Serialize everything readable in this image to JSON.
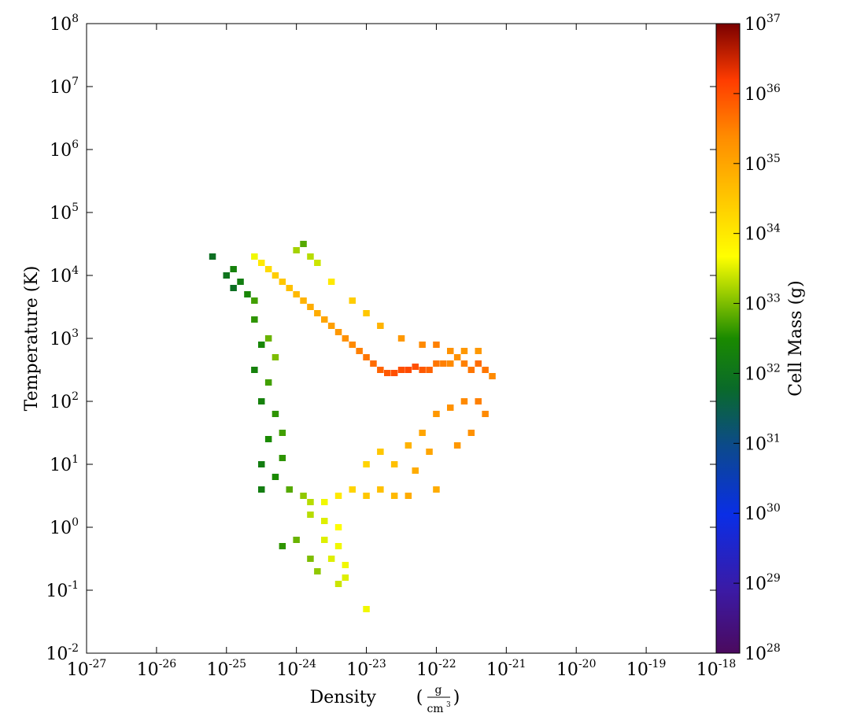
{
  "chart_data": {
    "type": "heatmap",
    "title": "",
    "xlabel": "Density",
    "xlabel_unit_numerator": "g",
    "xlabel_unit_denominator": "cm",
    "xlabel_unit_denominator_exp": "3",
    "ylabel": "Temperature  (K)",
    "colorbar_label": "Cell Mass  (g)",
    "xscale": "log",
    "yscale": "log",
    "colorscale": "log",
    "xlim": [
      1e-27,
      1e-18
    ],
    "ylim": [
      0.01,
      100000000.0
    ],
    "clim": [
      1e+28,
      1e+37
    ],
    "colormap": "jet-like (purple → blue → green → yellow → orange → red)",
    "x_ticks": [
      {
        "base": "10",
        "exp": "-27"
      },
      {
        "base": "10",
        "exp": "-26"
      },
      {
        "base": "10",
        "exp": "-25"
      },
      {
        "base": "10",
        "exp": "-24"
      },
      {
        "base": "10",
        "exp": "-23"
      },
      {
        "base": "10",
        "exp": "-22"
      },
      {
        "base": "10",
        "exp": "-21"
      },
      {
        "base": "10",
        "exp": "-20"
      },
      {
        "base": "10",
        "exp": "-19"
      },
      {
        "base": "10",
        "exp": "-18"
      }
    ],
    "y_ticks": [
      {
        "base": "10",
        "exp": "-2"
      },
      {
        "base": "10",
        "exp": "-1"
      },
      {
        "base": "10",
        "exp": "0"
      },
      {
        "base": "10",
        "exp": "1"
      },
      {
        "base": "10",
        "exp": "2"
      },
      {
        "base": "10",
        "exp": "3"
      },
      {
        "base": "10",
        "exp": "4"
      },
      {
        "base": "10",
        "exp": "5"
      },
      {
        "base": "10",
        "exp": "6"
      },
      {
        "base": "10",
        "exp": "7"
      },
      {
        "base": "10",
        "exp": "8"
      }
    ],
    "colorbar_ticks": [
      {
        "base": "10",
        "exp": "28"
      },
      {
        "base": "10",
        "exp": "29"
      },
      {
        "base": "10",
        "exp": "30"
      },
      {
        "base": "10",
        "exp": "31"
      },
      {
        "base": "10",
        "exp": "32"
      },
      {
        "base": "10",
        "exp": "33"
      },
      {
        "base": "10",
        "exp": "34"
      },
      {
        "base": "10",
        "exp": "35"
      },
      {
        "base": "10",
        "exp": "36"
      },
      {
        "base": "10",
        "exp": "37"
      }
    ],
    "data_description": "2D phase histogram: approximate log10 cell mass (g) per (log10 density, log10 temperature) cell",
    "cells": [
      [
        -24.6,
        4.3,
        33.6
      ],
      [
        -24.5,
        4.2,
        34.0
      ],
      [
        -24.4,
        4.1,
        34.2
      ],
      [
        -24.3,
        4.0,
        34.4
      ],
      [
        -24.2,
        3.9,
        34.5
      ],
      [
        -24.1,
        3.8,
        34.6
      ],
      [
        -24.0,
        3.7,
        34.7
      ],
      [
        -23.9,
        3.6,
        34.8
      ],
      [
        -23.8,
        3.5,
        34.9
      ],
      [
        -23.7,
        3.4,
        34.9
      ],
      [
        -23.6,
        3.3,
        35.0
      ],
      [
        -23.5,
        3.2,
        35.1
      ],
      [
        -23.4,
        3.1,
        35.2
      ],
      [
        -23.3,
        3.0,
        35.3
      ],
      [
        -23.2,
        2.9,
        35.4
      ],
      [
        -23.1,
        2.8,
        35.5
      ],
      [
        -23.0,
        2.7,
        35.6
      ],
      [
        -22.9,
        2.6,
        35.7
      ],
      [
        -22.8,
        2.5,
        35.8
      ],
      [
        -22.7,
        2.45,
        35.9
      ],
      [
        -22.6,
        2.45,
        36.0
      ],
      [
        -22.5,
        2.5,
        36.0
      ],
      [
        -22.4,
        2.5,
        36.05
      ],
      [
        -22.3,
        2.55,
        36.0
      ],
      [
        -22.2,
        2.5,
        35.9
      ],
      [
        -22.1,
        2.5,
        35.8
      ],
      [
        -22.0,
        2.6,
        35.6
      ],
      [
        -21.9,
        2.6,
        35.5
      ],
      [
        -21.8,
        2.6,
        35.4
      ],
      [
        -21.7,
        2.7,
        35.3
      ],
      [
        -21.6,
        2.6,
        35.5
      ],
      [
        -21.5,
        2.5,
        35.6
      ],
      [
        -21.4,
        2.6,
        35.7
      ],
      [
        -21.3,
        2.5,
        35.6
      ],
      [
        -21.2,
        2.4,
        35.4
      ],
      [
        -24.9,
        4.1,
        32.3
      ],
      [
        -25.0,
        4.0,
        32.0
      ],
      [
        -24.8,
        3.9,
        32.2
      ],
      [
        -24.9,
        3.8,
        31.9
      ],
      [
        -24.7,
        3.7,
        32.4
      ],
      [
        -24.6,
        3.6,
        32.7
      ],
      [
        -25.2,
        4.3,
        31.9
      ],
      [
        -24.6,
        3.3,
        32.6
      ],
      [
        -24.4,
        3.0,
        32.9
      ],
      [
        -24.3,
        2.7,
        33.0
      ],
      [
        -24.5,
        2.9,
        32.4
      ],
      [
        -24.6,
        2.5,
        32.3
      ],
      [
        -24.4,
        2.3,
        32.7
      ],
      [
        -24.5,
        2.0,
        32.3
      ],
      [
        -24.3,
        1.8,
        32.6
      ],
      [
        -24.2,
        1.5,
        32.7
      ],
      [
        -24.4,
        1.4,
        32.5
      ],
      [
        -24.2,
        1.1,
        32.6
      ],
      [
        -24.5,
        1.0,
        32.2
      ],
      [
        -24.3,
        0.8,
        32.5
      ],
      [
        -24.5,
        0.6,
        32.2
      ],
      [
        -24.1,
        0.6,
        32.8
      ],
      [
        -23.9,
        0.5,
        33.1
      ],
      [
        -23.8,
        0.4,
        33.3
      ],
      [
        -23.6,
        0.4,
        33.6
      ],
      [
        -23.4,
        0.5,
        34.0
      ],
      [
        -23.2,
        0.6,
        34.3
      ],
      [
        -23.0,
        0.5,
        34.5
      ],
      [
        -22.8,
        0.6,
        34.6
      ],
      [
        -22.6,
        0.5,
        34.7
      ],
      [
        -22.4,
        0.5,
        34.9
      ],
      [
        -23.8,
        0.2,
        33.3
      ],
      [
        -23.6,
        0.1,
        33.5
      ],
      [
        -23.4,
        0.0,
        33.7
      ],
      [
        -23.6,
        -0.2,
        33.5
      ],
      [
        -23.4,
        -0.3,
        33.6
      ],
      [
        -24.0,
        -0.2,
        32.9
      ],
      [
        -24.2,
        -0.3,
        32.6
      ],
      [
        -23.8,
        -0.5,
        33.0
      ],
      [
        -23.5,
        -0.5,
        33.5
      ],
      [
        -23.3,
        -0.6,
        33.6
      ],
      [
        -23.7,
        -0.7,
        33.1
      ],
      [
        -23.4,
        -0.9,
        33.4
      ],
      [
        -23.0,
        -1.3,
        33.6
      ],
      [
        -23.3,
        -0.8,
        33.5
      ],
      [
        -24.0,
        4.4,
        33.2
      ],
      [
        -23.9,
        4.5,
        32.8
      ],
      [
        -23.8,
        4.3,
        33.3
      ],
      [
        -23.7,
        4.2,
        33.4
      ],
      [
        -23.5,
        3.9,
        34.0
      ],
      [
        -23.2,
        3.6,
        34.4
      ],
      [
        -23.0,
        3.4,
        34.5
      ],
      [
        -22.8,
        3.2,
        34.8
      ],
      [
        -22.5,
        3.0,
        35.2
      ],
      [
        -22.2,
        2.9,
        35.4
      ],
      [
        -22.0,
        2.9,
        35.5
      ],
      [
        -21.8,
        2.8,
        35.3
      ],
      [
        -21.6,
        2.8,
        35.2
      ],
      [
        -21.4,
        2.8,
        35.2
      ],
      [
        -23.0,
        1.0,
        34.3
      ],
      [
        -22.8,
        1.2,
        34.5
      ],
      [
        -22.6,
        1.0,
        34.6
      ],
      [
        -22.4,
        1.3,
        34.8
      ],
      [
        -22.2,
        1.5,
        35.0
      ],
      [
        -22.0,
        1.8,
        35.2
      ],
      [
        -21.8,
        1.9,
        35.3
      ],
      [
        -21.6,
        2.0,
        35.4
      ],
      [
        -21.4,
        2.0,
        35.5
      ],
      [
        -21.3,
        1.8,
        35.4
      ],
      [
        -21.5,
        1.5,
        35.3
      ],
      [
        -21.7,
        1.3,
        35.2
      ],
      [
        -22.1,
        1.2,
        35.0
      ],
      [
        -22.3,
        0.9,
        34.9
      ],
      [
        -22.0,
        0.6,
        34.9
      ]
    ]
  }
}
